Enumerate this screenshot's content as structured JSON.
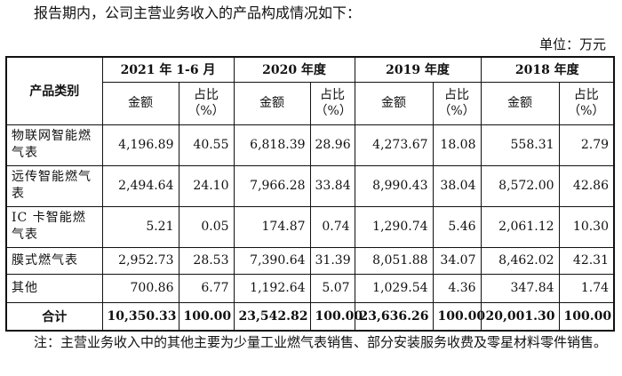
{
  "intro": "报告期内，公司主营业务收入的产品构成情况如下：",
  "unit": "单位：万元",
  "table": {
    "category_header": "产品类别",
    "periods": [
      "2021 年 1-6 月",
      "2020 年度",
      "2019 年度",
      "2018 年度"
    ],
    "amount_label": "金额",
    "ratio_label": "占比（%）",
    "rows": [
      {
        "category": "物联网智能燃气表",
        "values": [
          "4,196.89",
          "40.55",
          "6,818.39",
          "28.96",
          "4,273.67",
          "18.08",
          "558.31",
          "2.79"
        ]
      },
      {
        "category": "远传智能燃气表",
        "values": [
          "2,494.64",
          "24.10",
          "7,966.28",
          "33.84",
          "8,990.43",
          "38.04",
          "8,572.00",
          "42.86"
        ]
      },
      {
        "category": "IC 卡智能燃气表",
        "values": [
          "5.21",
          "0.05",
          "174.87",
          "0.74",
          "1,290.74",
          "5.46",
          "2,061.12",
          "10.30"
        ]
      },
      {
        "category": "膜式燃气表",
        "values": [
          "2,952.73",
          "28.53",
          "7,390.64",
          "31.39",
          "8,051.88",
          "34.07",
          "8,462.02",
          "42.31"
        ]
      },
      {
        "category": "其他",
        "values": [
          "700.86",
          "6.77",
          "1,192.64",
          "5.07",
          "1,029.54",
          "4.36",
          "347.84",
          "1.74"
        ]
      }
    ],
    "total": {
      "category": "合计",
      "values": [
        "10,350.33",
        "100.00",
        "23,542.82",
        "100.00",
        "23,636.26",
        "100.00",
        "20,001.30",
        "100.00"
      ]
    }
  },
  "note": "注：主营业务收入中的其他主要为少量工业燃气表销售、部分安装服务收费及零星材料零件销售。"
}
